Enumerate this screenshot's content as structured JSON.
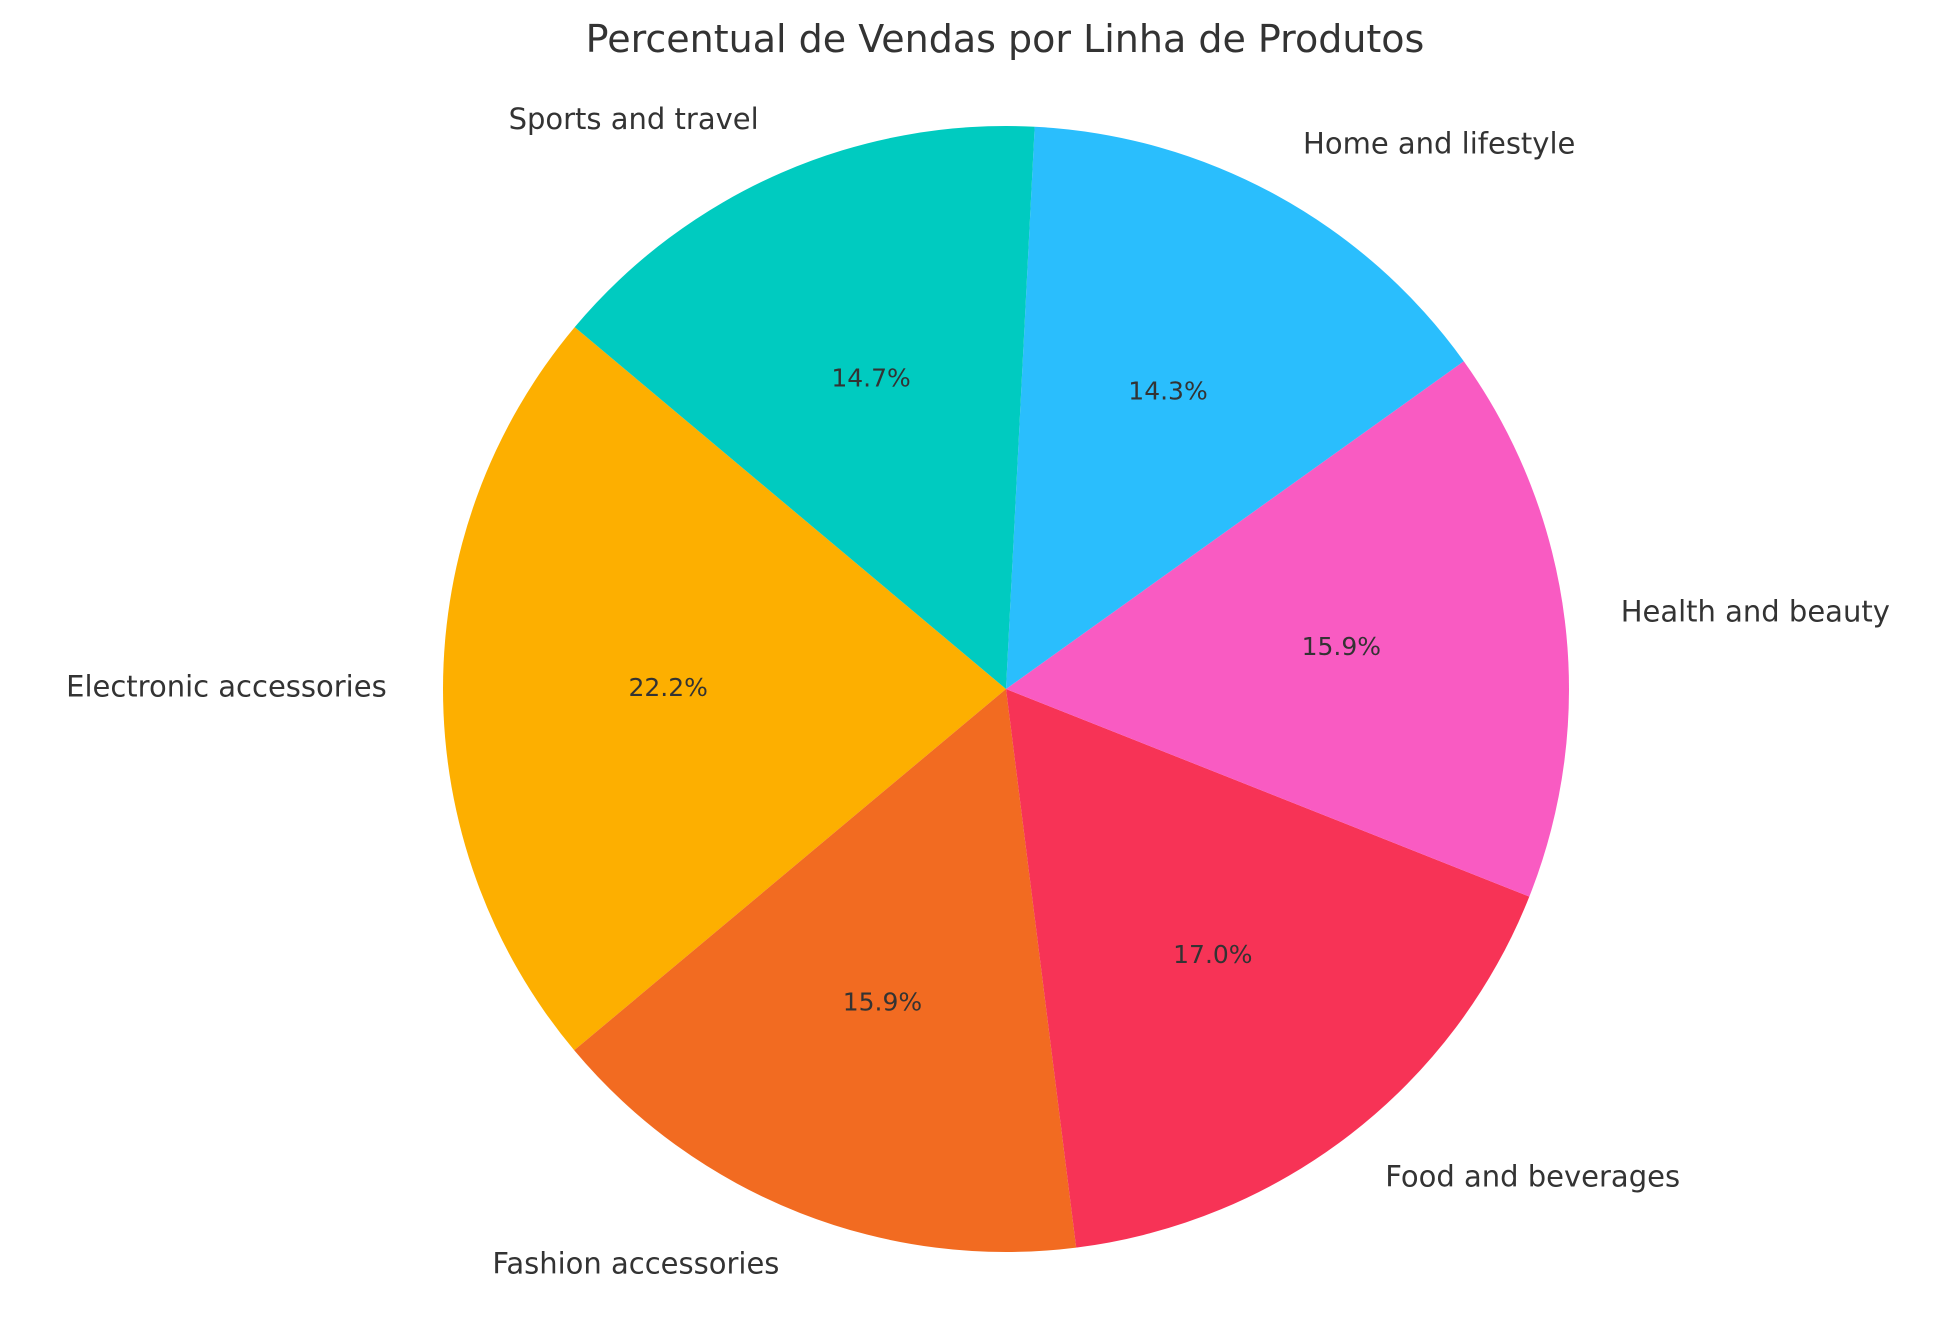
{
  "chart_data": {
    "type": "pie",
    "title": "Percentual de Vendas por Linha de Produtos",
    "slices": [
      {
        "label": "Electronic accessories",
        "value": 22.2,
        "pct_label": "22.2%",
        "color": "#FDAF00"
      },
      {
        "label": "Fashion accessories",
        "value": 15.9,
        "pct_label": "15.9%",
        "color": "#F26B21"
      },
      {
        "label": "Food and beverages",
        "value": 17.0,
        "pct_label": "17.0%",
        "color": "#F73356"
      },
      {
        "label": "Health and beauty",
        "value": 15.9,
        "pct_label": "15.9%",
        "color": "#F95BC2"
      },
      {
        "label": "Home and lifestyle",
        "value": 14.3,
        "pct_label": "14.3%",
        "color": "#2ABEFD"
      },
      {
        "label": "Sports and travel",
        "value": 14.7,
        "pct_label": "14.7%",
        "color": "#00CBC0"
      }
    ],
    "start_angle_deg": 140,
    "direction": "counterclockwise",
    "legend": "none",
    "grid": false
  }
}
